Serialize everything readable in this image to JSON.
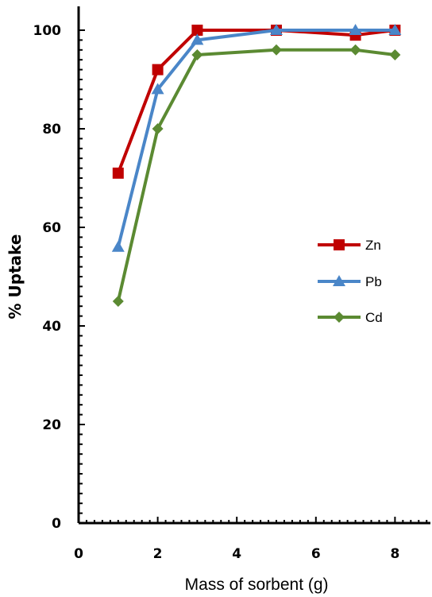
{
  "chart_data": {
    "type": "line",
    "title": "",
    "xlabel": "Mass of sorbent (g)",
    "ylabel": "% Uptake",
    "xlim": [
      0,
      9
    ],
    "ylim": [
      0,
      100
    ],
    "x_ticks": [
      0,
      2,
      4,
      6,
      8
    ],
    "y_ticks": [
      0,
      20,
      40,
      60,
      80,
      100
    ],
    "grid": false,
    "legend_position": "right",
    "series": [
      {
        "name": "Zn",
        "color": "#c00000",
        "marker": "square",
        "x": [
          1,
          2,
          3,
          5,
          7,
          8
        ],
        "y": [
          71,
          92,
          100,
          100,
          99,
          100
        ]
      },
      {
        "name": "Pb",
        "color": "#4a86c8",
        "marker": "triangle",
        "x": [
          1,
          2,
          3,
          5,
          7,
          8
        ],
        "y": [
          56,
          88,
          98,
          100,
          100,
          100
        ]
      },
      {
        "name": "Cd",
        "color": "#5b8a32",
        "marker": "diamond",
        "x": [
          1,
          2,
          3,
          5,
          7,
          8
        ],
        "y": [
          45,
          80,
          95,
          96,
          96,
          95
        ]
      }
    ]
  }
}
